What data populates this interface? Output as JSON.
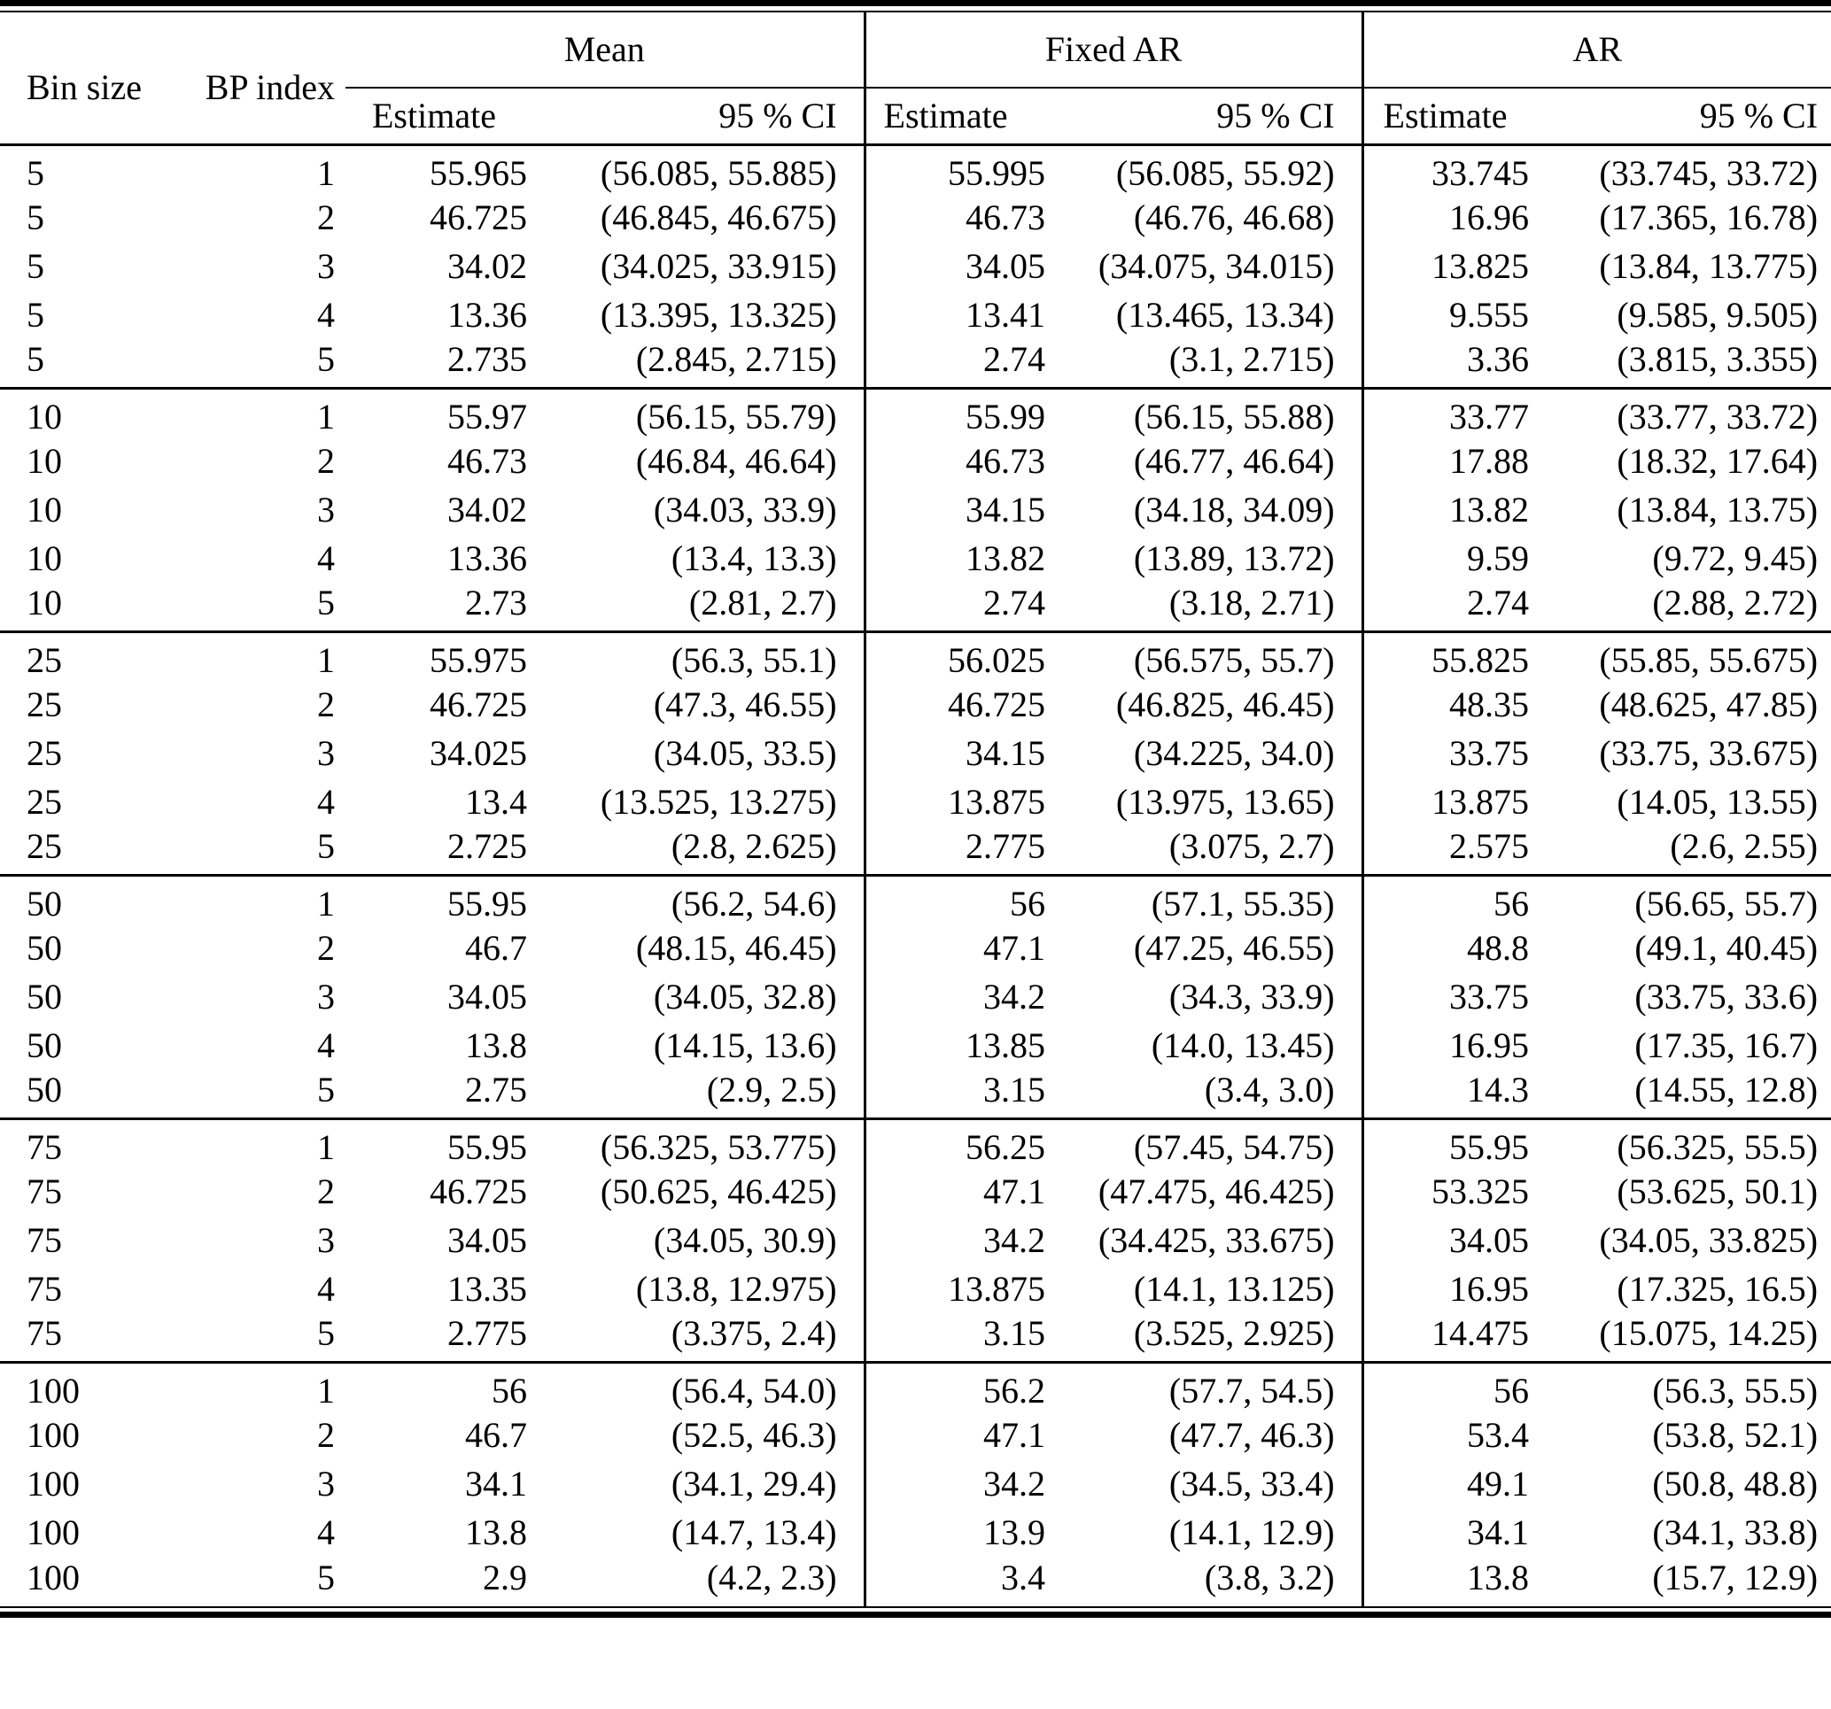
{
  "table": {
    "columns": {
      "bin_size": "Bin size",
      "bp_index": "BP index",
      "mean": "Mean",
      "fixed_ar": "Fixed AR",
      "ar": "AR",
      "estimate": "Estimate",
      "ci": "95 % CI"
    },
    "groups": [
      {
        "bin_size": "5",
        "rows": [
          {
            "bp": "1",
            "mean": {
              "est": "55.965",
              "ci": "(56.085, 55.885)"
            },
            "fixed_ar": {
              "est": "55.995",
              "ci": "(56.085, 55.92)"
            },
            "ar": {
              "est": "33.745",
              "ci": "(33.745, 33.72)"
            }
          },
          {
            "bp": "2",
            "mean": {
              "est": "46.725",
              "ci": "(46.845, 46.675)"
            },
            "fixed_ar": {
              "est": "46.73",
              "ci": "(46.76, 46.68)"
            },
            "ar": {
              "est": "16.96",
              "ci": "(17.365, 16.78)"
            }
          },
          {
            "bp": "3",
            "mean": {
              "est": "34.02",
              "ci": "(34.025, 33.915)"
            },
            "fixed_ar": {
              "est": "34.05",
              "ci": "(34.075, 34.015)"
            },
            "ar": {
              "est": "13.825",
              "ci": "(13.84, 13.775)"
            }
          },
          {
            "bp": "4",
            "mean": {
              "est": "13.36",
              "ci": "(13.395, 13.325)"
            },
            "fixed_ar": {
              "est": "13.41",
              "ci": "(13.465, 13.34)"
            },
            "ar": {
              "est": "9.555",
              "ci": "(9.585, 9.505)"
            }
          },
          {
            "bp": "5",
            "mean": {
              "est": "2.735",
              "ci": "(2.845, 2.715)"
            },
            "fixed_ar": {
              "est": "2.74",
              "ci": "(3.1, 2.715)"
            },
            "ar": {
              "est": "3.36",
              "ci": "(3.815, 3.355)"
            }
          }
        ]
      },
      {
        "bin_size": "10",
        "rows": [
          {
            "bp": "1",
            "mean": {
              "est": "55.97",
              "ci": "(56.15, 55.79)"
            },
            "fixed_ar": {
              "est": "55.99",
              "ci": "(56.15, 55.88)"
            },
            "ar": {
              "est": "33.77",
              "ci": "(33.77, 33.72)"
            }
          },
          {
            "bp": "2",
            "mean": {
              "est": "46.73",
              "ci": "(46.84, 46.64)"
            },
            "fixed_ar": {
              "est": "46.73",
              "ci": "(46.77, 46.64)"
            },
            "ar": {
              "est": "17.88",
              "ci": "(18.32, 17.64)"
            }
          },
          {
            "bp": "3",
            "mean": {
              "est": "34.02",
              "ci": "(34.03, 33.9)"
            },
            "fixed_ar": {
              "est": "34.15",
              "ci": "(34.18, 34.09)"
            },
            "ar": {
              "est": "13.82",
              "ci": "(13.84, 13.75)"
            }
          },
          {
            "bp": "4",
            "mean": {
              "est": "13.36",
              "ci": "(13.4, 13.3)"
            },
            "fixed_ar": {
              "est": "13.82",
              "ci": "(13.89, 13.72)"
            },
            "ar": {
              "est": "9.59",
              "ci": "(9.72, 9.45)"
            }
          },
          {
            "bp": "5",
            "mean": {
              "est": "2.73",
              "ci": "(2.81, 2.7)"
            },
            "fixed_ar": {
              "est": "2.74",
              "ci": "(3.18, 2.71)"
            },
            "ar": {
              "est": "2.74",
              "ci": "(2.88, 2.72)"
            }
          }
        ]
      },
      {
        "bin_size": "25",
        "rows": [
          {
            "bp": "1",
            "mean": {
              "est": "55.975",
              "ci": "(56.3, 55.1)"
            },
            "fixed_ar": {
              "est": "56.025",
              "ci": "(56.575, 55.7)"
            },
            "ar": {
              "est": "55.825",
              "ci": "(55.85, 55.675)"
            }
          },
          {
            "bp": "2",
            "mean": {
              "est": "46.725",
              "ci": "(47.3, 46.55)"
            },
            "fixed_ar": {
              "est": "46.725",
              "ci": "(46.825, 46.45)"
            },
            "ar": {
              "est": "48.35",
              "ci": "(48.625, 47.85)"
            }
          },
          {
            "bp": "3",
            "mean": {
              "est": "34.025",
              "ci": "(34.05, 33.5)"
            },
            "fixed_ar": {
              "est": "34.15",
              "ci": "(34.225, 34.0)"
            },
            "ar": {
              "est": "33.75",
              "ci": "(33.75, 33.675)"
            }
          },
          {
            "bp": "4",
            "mean": {
              "est": "13.4",
              "ci": "(13.525, 13.275)"
            },
            "fixed_ar": {
              "est": "13.875",
              "ci": "(13.975, 13.65)"
            },
            "ar": {
              "est": "13.875",
              "ci": "(14.05, 13.55)"
            }
          },
          {
            "bp": "5",
            "mean": {
              "est": "2.725",
              "ci": "(2.8, 2.625)"
            },
            "fixed_ar": {
              "est": "2.775",
              "ci": "(3.075, 2.7)"
            },
            "ar": {
              "est": "2.575",
              "ci": "(2.6, 2.55)"
            }
          }
        ]
      },
      {
        "bin_size": "50",
        "rows": [
          {
            "bp": "1",
            "mean": {
              "est": "55.95",
              "ci": "(56.2, 54.6)"
            },
            "fixed_ar": {
              "est": "56",
              "ci": "(57.1, 55.35)"
            },
            "ar": {
              "est": "56",
              "ci": "(56.65, 55.7)"
            }
          },
          {
            "bp": "2",
            "mean": {
              "est": "46.7",
              "ci": "(48.15, 46.45)"
            },
            "fixed_ar": {
              "est": "47.1",
              "ci": "(47.25, 46.55)"
            },
            "ar": {
              "est": "48.8",
              "ci": "(49.1, 40.45)"
            }
          },
          {
            "bp": "3",
            "mean": {
              "est": "34.05",
              "ci": "(34.05, 32.8)"
            },
            "fixed_ar": {
              "est": "34.2",
              "ci": "(34.3, 33.9)"
            },
            "ar": {
              "est": "33.75",
              "ci": "(33.75, 33.6)"
            }
          },
          {
            "bp": "4",
            "mean": {
              "est": "13.8",
              "ci": "(14.15, 13.6)"
            },
            "fixed_ar": {
              "est": "13.85",
              "ci": "(14.0, 13.45)"
            },
            "ar": {
              "est": "16.95",
              "ci": "(17.35, 16.7)"
            }
          },
          {
            "bp": "5",
            "mean": {
              "est": "2.75",
              "ci": "(2.9, 2.5)"
            },
            "fixed_ar": {
              "est": "3.15",
              "ci": "(3.4, 3.0)"
            },
            "ar": {
              "est": "14.3",
              "ci": "(14.55, 12.8)"
            }
          }
        ]
      },
      {
        "bin_size": "75",
        "rows": [
          {
            "bp": "1",
            "mean": {
              "est": "55.95",
              "ci": "(56.325, 53.775)"
            },
            "fixed_ar": {
              "est": "56.25",
              "ci": "(57.45, 54.75)"
            },
            "ar": {
              "est": "55.95",
              "ci": "(56.325, 55.5)"
            }
          },
          {
            "bp": "2",
            "mean": {
              "est": "46.725",
              "ci": "(50.625, 46.425)"
            },
            "fixed_ar": {
              "est": "47.1",
              "ci": "(47.475, 46.425)"
            },
            "ar": {
              "est": "53.325",
              "ci": "(53.625, 50.1)"
            }
          },
          {
            "bp": "3",
            "mean": {
              "est": "34.05",
              "ci": "(34.05, 30.9)"
            },
            "fixed_ar": {
              "est": "34.2",
              "ci": "(34.425, 33.675)"
            },
            "ar": {
              "est": "34.05",
              "ci": "(34.05, 33.825)"
            }
          },
          {
            "bp": "4",
            "mean": {
              "est": "13.35",
              "ci": "(13.8, 12.975)"
            },
            "fixed_ar": {
              "est": "13.875",
              "ci": "(14.1, 13.125)"
            },
            "ar": {
              "est": "16.95",
              "ci": "(17.325, 16.5)"
            }
          },
          {
            "bp": "5",
            "mean": {
              "est": "2.775",
              "ci": "(3.375, 2.4)"
            },
            "fixed_ar": {
              "est": "3.15",
              "ci": "(3.525, 2.925)"
            },
            "ar": {
              "est": "14.475",
              "ci": "(15.075, 14.25)"
            }
          }
        ]
      },
      {
        "bin_size": "100",
        "rows": [
          {
            "bp": "1",
            "mean": {
              "est": "56",
              "ci": "(56.4, 54.0)"
            },
            "fixed_ar": {
              "est": "56.2",
              "ci": "(57.7, 54.5)"
            },
            "ar": {
              "est": "56",
              "ci": "(56.3, 55.5)"
            }
          },
          {
            "bp": "2",
            "mean": {
              "est": "46.7",
              "ci": "(52.5, 46.3)"
            },
            "fixed_ar": {
              "est": "47.1",
              "ci": "(47.7, 46.3)"
            },
            "ar": {
              "est": "53.4",
              "ci": "(53.8, 52.1)"
            }
          },
          {
            "bp": "3",
            "mean": {
              "est": "34.1",
              "ci": "(34.1, 29.4)"
            },
            "fixed_ar": {
              "est": "34.2",
              "ci": "(34.5, 33.4)"
            },
            "ar": {
              "est": "49.1",
              "ci": "(50.8, 48.8)"
            }
          },
          {
            "bp": "4",
            "mean": {
              "est": "13.8",
              "ci": "(14.7, 13.4)"
            },
            "fixed_ar": {
              "est": "13.9",
              "ci": "(14.1, 12.9)"
            },
            "ar": {
              "est": "34.1",
              "ci": "(34.1, 33.8)"
            }
          },
          {
            "bp": "5",
            "mean": {
              "est": "2.9",
              "ci": "(4.2, 2.3)"
            },
            "fixed_ar": {
              "est": "3.4",
              "ci": "(3.8, 3.2)"
            },
            "ar": {
              "est": "13.8",
              "ci": "(15.7, 12.9)"
            }
          }
        ]
      }
    ]
  }
}
